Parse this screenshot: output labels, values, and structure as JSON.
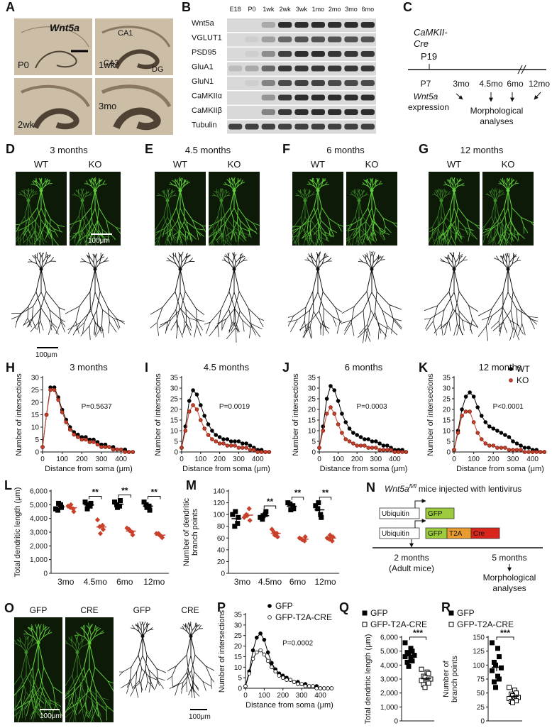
{
  "figure": {
    "A": {
      "letter": "A",
      "gene": "Wnt5a",
      "ages": [
        "P0",
        "1wk",
        "2wk",
        "3mo"
      ],
      "regions": [
        "CA1",
        "CA3",
        "DG"
      ]
    },
    "B": {
      "letter": "B",
      "ages": [
        "E18",
        "P0",
        "1wk",
        "2wk",
        "3wk",
        "1mo",
        "2mo",
        "3mo",
        "6mo"
      ],
      "proteins": [
        "Wnt5a",
        "VGLUT1",
        "PSD95",
        "GluA1",
        "GluN1",
        "CaMKIIα",
        "CaMKIIβ",
        "Tubulin"
      ]
    },
    "C": {
      "letter": "C",
      "driver": [
        "CaMKII-",
        "Cre"
      ],
      "driver_age": "P19",
      "timeline": [
        "P7",
        "3mo",
        "4.5mo",
        "6mo",
        "12mo"
      ],
      "expression": [
        "Wnt5a",
        "expression"
      ],
      "analyses": [
        "Morphological",
        "analyses"
      ]
    },
    "D": {
      "letter": "D",
      "title": "3 months",
      "genotypes": [
        "WT",
        "KO"
      ],
      "scale_bars": [
        "100μm",
        "100μm"
      ]
    },
    "E": {
      "letter": "E",
      "title": "4.5 months",
      "genotypes": [
        "WT",
        "KO"
      ]
    },
    "F": {
      "letter": "F",
      "title": "6 months",
      "genotypes": [
        "WT",
        "KO"
      ]
    },
    "G": {
      "letter": "G",
      "title": "12 months",
      "genotypes": [
        "WT",
        "KO"
      ]
    },
    "N": {
      "letter": "N",
      "title": [
        "Wnt5a",
        "fl/fl",
        "mice injected with lentivirus"
      ],
      "construct1": [
        "Ubiquitin",
        "GFP"
      ],
      "construct2": [
        "Ubiquitin",
        "GFP",
        "T2A",
        "Cre"
      ],
      "start": [
        "2 months",
        "(Adult mice)"
      ],
      "end": [
        "5 months",
        "Morphological",
        "analyses"
      ]
    },
    "O": {
      "letter": "O",
      "images": [
        "GFP",
        "CRE"
      ],
      "tracings": [
        "GFP",
        "CRE"
      ],
      "scale_bars": [
        "100μm",
        "100μm"
      ]
    }
  },
  "chart_data": [
    {
      "letter": "H",
      "type": "line",
      "title": "3 months",
      "xlabel": "Distance from soma (μm)",
      "ylabel": "Number of intersections",
      "annotation": "P=0.5637",
      "xlim": [
        0,
        470
      ],
      "xticks": [
        0,
        100,
        200,
        300,
        400
      ],
      "ylim": [
        0,
        30
      ],
      "yticks": [
        0,
        5,
        10,
        15,
        20,
        25,
        30
      ],
      "x": [
        0,
        20,
        40,
        60,
        80,
        100,
        120,
        140,
        160,
        180,
        200,
        220,
        240,
        260,
        280,
        300,
        320,
        340,
        360,
        380,
        400,
        420,
        440,
        460
      ],
      "series": [
        {
          "color": "#000000",
          "marker": "circle",
          "values": [
            2,
            15,
            26,
            26,
            22,
            17,
            13,
            10,
            8,
            7,
            6,
            6,
            5,
            5,
            4,
            3,
            3,
            2,
            2,
            1,
            1,
            1,
            0,
            0
          ]
        },
        {
          "color": "#c8402a",
          "marker": "circle",
          "values": [
            2,
            15,
            25,
            25,
            21,
            16,
            12,
            9,
            7,
            6,
            5,
            5,
            4,
            4,
            3,
            2,
            2,
            2,
            1,
            1,
            1,
            0,
            0,
            0
          ]
        }
      ]
    },
    {
      "letter": "I",
      "type": "line",
      "title": "4.5 months",
      "xlabel": "Distance from soma (μm)",
      "ylabel": "Number of intersections",
      "annotation": "P=0.0019",
      "xlim": [
        0,
        470
      ],
      "xticks": [
        0,
        100,
        200,
        300,
        400
      ],
      "ylim": [
        0,
        35
      ],
      "yticks": [
        0,
        5,
        10,
        15,
        20,
        25,
        30,
        35
      ],
      "x": [
        0,
        20,
        40,
        60,
        80,
        100,
        120,
        140,
        160,
        180,
        200,
        220,
        240,
        260,
        280,
        300,
        320,
        340,
        360,
        380,
        400,
        420,
        440,
        460
      ],
      "series": [
        {
          "color": "#000000",
          "marker": "circle",
          "values": [
            2,
            12,
            24,
            29,
            27,
            22,
            17,
            13,
            10,
            8,
            7,
            6,
            6,
            5,
            5,
            5,
            4,
            4,
            3,
            2,
            1,
            1,
            0,
            0
          ]
        },
        {
          "color": "#c8402a",
          "marker": "circle",
          "values": [
            2,
            10,
            19,
            22,
            20,
            15,
            11,
            8,
            6,
            5,
            4,
            4,
            3,
            3,
            3,
            2,
            2,
            2,
            1,
            1,
            0,
            0,
            0,
            0
          ]
        }
      ]
    },
    {
      "letter": "J",
      "type": "line",
      "title": "6 months",
      "xlabel": "Distance from soma (μm)",
      "ylabel": "Number of intersections",
      "annotation": "P=0.0003",
      "xlim": [
        0,
        470
      ],
      "xticks": [
        0,
        100,
        200,
        300,
        400
      ],
      "ylim": [
        0,
        35
      ],
      "yticks": [
        0,
        5,
        10,
        15,
        20,
        25,
        30,
        35
      ],
      "x": [
        0,
        20,
        40,
        60,
        80,
        100,
        120,
        140,
        160,
        180,
        200,
        220,
        240,
        260,
        280,
        300,
        320,
        340,
        360,
        380,
        400,
        420,
        440,
        460
      ],
      "series": [
        {
          "color": "#000000",
          "marker": "circle",
          "values": [
            2,
            12,
            25,
            31,
            29,
            24,
            18,
            14,
            11,
            9,
            8,
            7,
            6,
            6,
            5,
            5,
            4,
            3,
            3,
            2,
            1,
            1,
            1,
            0
          ]
        },
        {
          "color": "#c8402a",
          "marker": "circle",
          "values": [
            2,
            10,
            18,
            21,
            18,
            13,
            9,
            6,
            5,
            4,
            3,
            3,
            3,
            2,
            2,
            2,
            1,
            1,
            1,
            1,
            0,
            0,
            0,
            0
          ]
        }
      ]
    },
    {
      "letter": "K",
      "type": "line",
      "title": "12 months",
      "xlabel": "Distance from soma (μm)",
      "ylabel": "Number of intersections",
      "annotation": "P<0.0001",
      "legend": "upper right",
      "xlim": [
        0,
        470
      ],
      "xticks": [
        0,
        100,
        200,
        300,
        400
      ],
      "ylim": [
        0,
        35
      ],
      "yticks": [
        0,
        5,
        10,
        15,
        20,
        25,
        30,
        35
      ],
      "x": [
        0,
        20,
        40,
        60,
        80,
        100,
        120,
        140,
        160,
        180,
        200,
        220,
        240,
        260,
        280,
        300,
        320,
        340,
        360,
        380,
        400,
        420,
        440,
        460
      ],
      "series": [
        {
          "name": "WT",
          "color": "#000000",
          "marker": "circle",
          "values": [
            1,
            10,
            20,
            26,
            28,
            26,
            21,
            17,
            14,
            12,
            11,
            10,
            9,
            8,
            7,
            5,
            4,
            3,
            2,
            2,
            1,
            1,
            0,
            0
          ]
        },
        {
          "name": "KO",
          "color": "#c8402a",
          "marker": "circle",
          "values": [
            1,
            9,
            17,
            19,
            19,
            14,
            9,
            6,
            4,
            3,
            3,
            2,
            2,
            2,
            1,
            1,
            1,
            1,
            0,
            0,
            0,
            0,
            0,
            0
          ]
        }
      ]
    },
    {
      "letter": "L",
      "type": "dot",
      "ylabel": "Total dendritic length (μm)",
      "categories": [
        "3mo",
        "4.5mo",
        "6mo",
        "12mo"
      ],
      "significance": [
        null,
        "**",
        "**",
        "**"
      ],
      "ylim": [
        0,
        6000
      ],
      "yticks": [
        0,
        {
          "value": 1000,
          "label": "1,000"
        },
        {
          "value": 2000,
          "label": "2,000"
        },
        {
          "value": 3000,
          "label": "3,000"
        },
        {
          "value": 4000,
          "label": "4,000"
        },
        {
          "value": 5000,
          "label": "5,000"
        },
        {
          "value": 6000,
          "label": "6,000"
        }
      ],
      "series": [
        {
          "color": "#000000",
          "marker": "square",
          "values": [
            [
              4700,
              5000,
              4800,
              4600,
              5100
            ],
            [
              5200,
              4900,
              5100,
              4700,
              5000
            ],
            [
              5200,
              4900,
              5300,
              5000,
              4800
            ],
            [
              5200,
              4900,
              4600,
              5000,
              4800
            ]
          ],
          "mean": [
            4840,
            4980,
            5040,
            4900
          ],
          "sem": [
            90,
            85,
            90,
            100
          ]
        },
        {
          "color": "#c8402a",
          "marker": "diamond",
          "values": [
            [
              4900,
              4700,
              4500,
              4800,
              5000
            ],
            [
              3900,
              3500,
              3200,
              3400,
              2900
            ],
            [
              3300,
              3000,
              2800,
              3200,
              3100
            ],
            [
              2900,
              2700,
              2600,
              2900,
              2800
            ]
          ],
          "mean": [
            4780,
            3380,
            3080,
            2780
          ],
          "sem": [
            85,
            160,
            85,
            60
          ]
        }
      ]
    },
    {
      "letter": "M",
      "type": "dot",
      "ylabel": [
        "Number of dendritic",
        "branch points"
      ],
      "categories": [
        "3mo",
        "4.5mo",
        "6mo",
        "12mo"
      ],
      "significance": [
        null,
        "**",
        "**",
        "**"
      ],
      "ylim": [
        0,
        140
      ],
      "yticks": [
        0,
        20,
        40,
        60,
        80,
        100,
        120,
        140
      ],
      "series": [
        {
          "color": "#000000",
          "marker": "square",
          "values": [
            [
              100,
              85,
              95,
              80,
              105
            ],
            [
              95,
              100,
              105,
              92,
              98
            ],
            [
              120,
              115,
              110,
              118,
              108
            ],
            [
              115,
              100,
              95,
              110,
              120
            ]
          ],
          "mean": [
            93,
            98,
            114,
            108
          ],
          "sem": [
            4.5,
            2.2,
            2.2,
            4.5
          ]
        },
        {
          "color": "#c8402a",
          "marker": "diamond",
          "values": [
            [
              95,
              110,
              90,
              100,
              98
            ],
            [
              75,
              68,
              62,
              70,
              65
            ],
            [
              60,
              55,
              62,
              58,
              57
            ],
            [
              60,
              55,
              62,
              58,
              65
            ]
          ],
          "mean": [
            99,
            68,
            58,
            60
          ],
          "sem": [
            3.3,
            2.2,
            1.2,
            1.7
          ]
        }
      ]
    },
    {
      "letter": "P",
      "type": "line",
      "xlabel": "Distance from soma (μm)",
      "ylabel": "Number of intersections",
      "annotation": "P=0.0002",
      "legend": "top",
      "xlim": [
        0,
        470
      ],
      "xticks": [
        0,
        100,
        200,
        300,
        400
      ],
      "ylim": [
        0,
        35
      ],
      "yticks": [
        0,
        5,
        10,
        15,
        20,
        25,
        30,
        35
      ],
      "x": [
        0,
        20,
        40,
        60,
        80,
        100,
        120,
        140,
        160,
        180,
        200,
        220,
        240,
        260,
        280,
        300,
        320,
        340,
        360,
        380,
        400,
        420,
        440,
        460
      ],
      "series": [
        {
          "name": "GFP",
          "color": "#000000",
          "marker": "circle",
          "values": [
            1,
            8,
            18,
            24,
            26,
            23,
            17,
            12,
            9,
            7,
            6,
            5,
            4,
            3,
            3,
            2,
            2,
            1,
            1,
            1,
            0,
            0,
            0,
            0
          ]
        },
        {
          "name": "GFP-T2A-CRE",
          "color": "#000000",
          "marker": "open-circle",
          "values": [
            1,
            7,
            14,
            17,
            18,
            16,
            13,
            10,
            8,
            6,
            5,
            4,
            4,
            3,
            2,
            2,
            1,
            1,
            1,
            0,
            0,
            0,
            0,
            0
          ]
        }
      ]
    },
    {
      "letter": "Q",
      "type": "dot",
      "ylabel": "Total dendritic length (μm)",
      "significance": "***",
      "legend": "top",
      "ylim": [
        0,
        6000
      ],
      "yticks": [
        0,
        {
          "value": 1000,
          "label": "1,000"
        },
        {
          "value": 2000,
          "label": "2,000"
        },
        {
          "value": 3000,
          "label": "3,000"
        },
        {
          "value": 4000,
          "label": "4,000"
        },
        {
          "value": 5000,
          "label": "5,000"
        },
        {
          "value": 6000,
          "label": "6,000"
        }
      ],
      "series": [
        {
          "name": "GFP",
          "color": "#000000",
          "marker": "square",
          "values": [
            5600,
            5200,
            5000,
            4900,
            4800,
            4700,
            4600,
            4500,
            4300,
            4200,
            3900
          ],
          "mean": 4700,
          "sem": 150
        },
        {
          "name": "GFP-T2A-CRE",
          "color": "#000000",
          "marker": "open-square",
          "values": [
            3700,
            3500,
            3400,
            3200,
            3100,
            3000,
            2900,
            2800,
            2700,
            2600,
            2400
          ],
          "mean": 3027,
          "sem": 120
        }
      ]
    },
    {
      "letter": "R",
      "type": "dot",
      "ylabel": [
        "Number of",
        "branch points"
      ],
      "significance": "***",
      "legend": "top",
      "ylim": [
        0,
        150
      ],
      "yticks": [
        0,
        25,
        50,
        75,
        100,
        125,
        150
      ],
      "series": [
        {
          "name": "GFP",
          "color": "#000000",
          "marker": "square",
          "values": [
            140,
            130,
            115,
            105,
            100,
            95,
            90,
            80,
            75,
            70,
            60
          ],
          "mean": 96,
          "sem": 7
        },
        {
          "name": "GFP-T2A-CRE",
          "color": "#000000",
          "marker": "open-square",
          "values": [
            60,
            55,
            50,
            48,
            45,
            42,
            40,
            38,
            36,
            35,
            33
          ],
          "mean": 44,
          "sem": 2.6
        }
      ]
    }
  ]
}
